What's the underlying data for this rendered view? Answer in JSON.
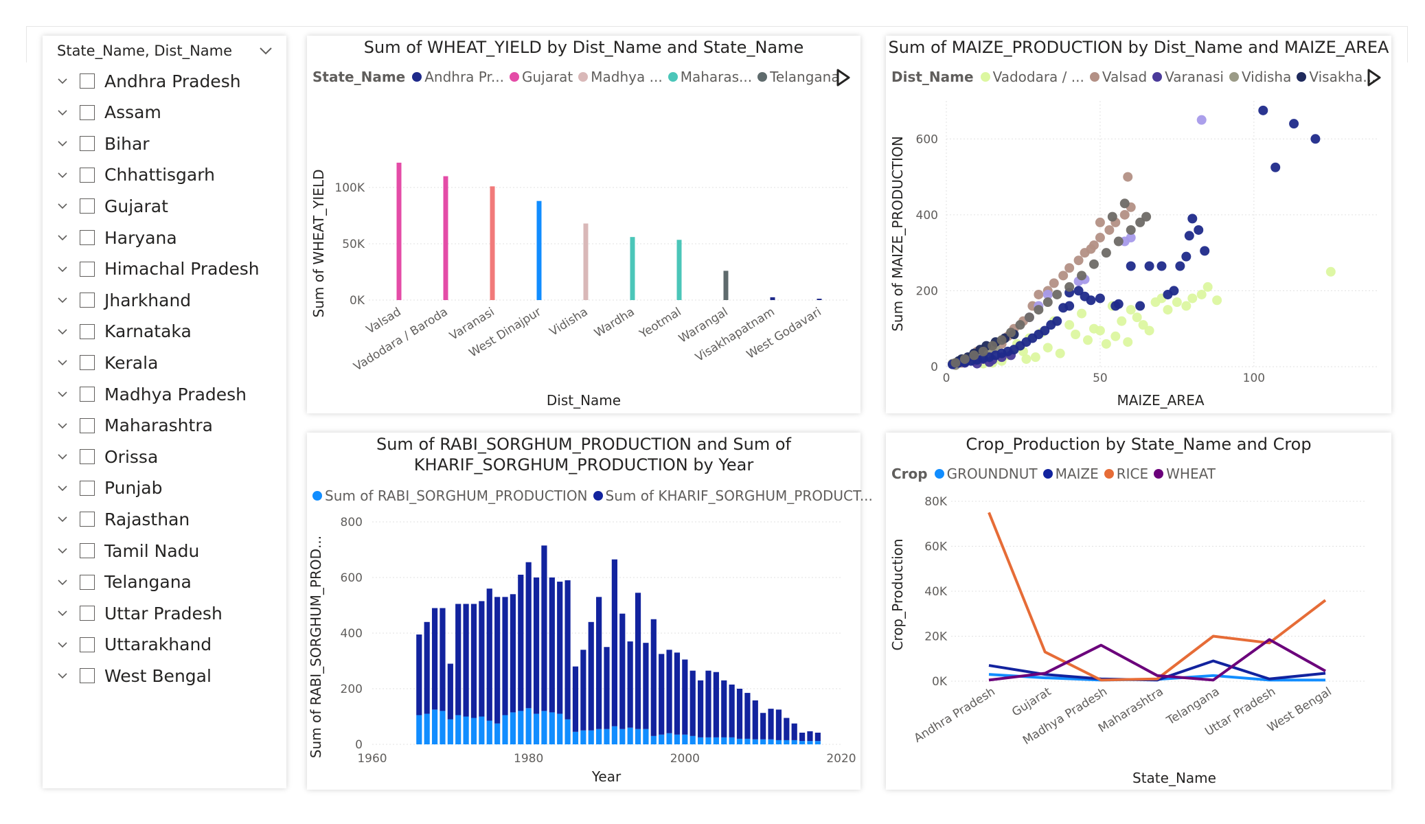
{
  "slicer": {
    "header": "State_Name, Dist_Name",
    "items": [
      "Andhra Pradesh",
      "Assam",
      "Bihar",
      "Chhattisgarh",
      "Gujarat",
      "Haryana",
      "Himachal Pradesh",
      "Jharkhand",
      "Karnataka",
      "Kerala",
      "Madhya Pradesh",
      "Maharashtra",
      "Orissa",
      "Punjab",
      "Rajasthan",
      "Tamil Nadu",
      "Telangana",
      "Uttar Pradesh",
      "Uttarakhand",
      "West Bengal"
    ]
  },
  "wheat": {
    "legend_title": "State_Name",
    "legend": [
      {
        "name": "Andhra Pr...",
        "color": "#1f2a8a"
      },
      {
        "name": "Gujarat",
        "color": "#e44ca7"
      },
      {
        "name": "Madhya ...",
        "color": "#d9b8b8"
      },
      {
        "name": "Maharas...",
        "color": "#4bc6b9"
      },
      {
        "name": "Telangana",
        "color": "#5f6b6d"
      }
    ]
  },
  "maize": {
    "legend_title": "Dist_Name",
    "legend": [
      {
        "name": "Vadodara / ...",
        "color": "#dcf7a0"
      },
      {
        "name": "Valsad",
        "color": "#b39085"
      },
      {
        "name": "Varanasi",
        "color": "#4a3a9a"
      },
      {
        "name": "Vidisha",
        "color": "#9a9a86"
      },
      {
        "name": "Visakha...",
        "color": "#1f2a5c"
      }
    ]
  },
  "sorghum": {
    "legend": [
      {
        "name": "Sum of RABI_SORGHUM_PRODUCTION",
        "color": "#118dff"
      },
      {
        "name": "Sum of KHARIF_SORGHUM_PRODUCT...",
        "color": "#12239e"
      }
    ]
  },
  "crop": {
    "legend_title": "Crop",
    "legend": [
      {
        "name": "GROUNDNUT",
        "color": "#118dff"
      },
      {
        "name": "MAIZE",
        "color": "#12239e"
      },
      {
        "name": "RICE",
        "color": "#e66c37"
      },
      {
        "name": "WHEAT",
        "color": "#6b007b"
      }
    ]
  },
  "chart_data": [
    {
      "type": "bar",
      "title": "Sum of WHEAT_YIELD by Dist_Name and State_Name",
      "xlabel": "Dist_Name",
      "ylabel": "Sum of WHEAT_YIELD",
      "ylim": [
        0,
        125000
      ],
      "yticks": [
        0,
        50000,
        100000
      ],
      "ytick_labels": [
        "0K",
        "50K",
        "100K"
      ],
      "categories": [
        "Valsad",
        "Vadodara / Baroda",
        "Varanasi",
        "West Dinajpur",
        "Vidisha",
        "Wardha",
        "Yeotmal",
        "Warangal",
        "Visakhapatnam",
        "West Godavari"
      ],
      "values": [
        122000,
        110000,
        101000,
        88000,
        68000,
        56000,
        53500,
        26000,
        2500,
        1200
      ],
      "colors": [
        "#e44ca7",
        "#e44ca7",
        "#f17a7a",
        "#118dff",
        "#d9b8b8",
        "#4bc6b9",
        "#4bc6b9",
        "#5f6b6d",
        "#1f2a8a",
        "#1f2a8a"
      ]
    },
    {
      "type": "scatter",
      "title": "Sum of MAIZE_PRODUCTION by Dist_Name and MAIZE_AREA",
      "xlabel": "MAIZE_AREA",
      "ylabel": "Sum of MAIZE_PRODUCTION",
      "xlim": [
        0,
        140
      ],
      "ylim": [
        0,
        700
      ],
      "xticks": [
        0,
        50,
        100
      ],
      "yticks": [
        0,
        200,
        400,
        600
      ],
      "series": [
        {
          "color": "#dcf7a0",
          "points": [
            [
              20,
              30
            ],
            [
              23,
              60
            ],
            [
              25,
              40
            ],
            [
              27,
              75
            ],
            [
              29,
              25
            ],
            [
              31,
              90
            ],
            [
              33,
              50
            ],
            [
              35,
              120
            ],
            [
              37,
              35
            ],
            [
              40,
              110
            ],
            [
              42,
              85
            ],
            [
              44,
              140
            ],
            [
              46,
              70
            ],
            [
              48,
              100
            ],
            [
              50,
              95
            ],
            [
              52,
              60
            ],
            [
              54,
              160
            ],
            [
              55,
              80
            ],
            [
              57,
              120
            ],
            [
              59,
              65
            ],
            [
              60,
              150
            ],
            [
              62,
              130
            ],
            [
              64,
              110
            ],
            [
              66,
              95
            ],
            [
              68,
              170
            ],
            [
              70,
              180
            ],
            [
              72,
              150
            ],
            [
              75,
              170
            ],
            [
              78,
              160
            ],
            [
              80,
              180
            ],
            [
              85,
              210
            ],
            [
              83,
              190
            ],
            [
              88,
              175
            ],
            [
              125,
              250
            ],
            [
              18,
              15
            ],
            [
              15,
              10
            ],
            [
              12,
              8
            ],
            [
              22,
              45
            ],
            [
              26,
              20
            ]
          ]
        },
        {
          "color": "#b39085",
          "points": [
            [
              5,
              10
            ],
            [
              8,
              25
            ],
            [
              10,
              40
            ],
            [
              12,
              30
            ],
            [
              15,
              45
            ],
            [
              18,
              60
            ],
            [
              20,
              80
            ],
            [
              22,
              100
            ],
            [
              25,
              120
            ],
            [
              28,
              160
            ],
            [
              30,
              190
            ],
            [
              33,
              200
            ],
            [
              35,
              220
            ],
            [
              38,
              240
            ],
            [
              40,
              260
            ],
            [
              43,
              280
            ],
            [
              45,
              300
            ],
            [
              48,
              320
            ],
            [
              50,
              340
            ],
            [
              53,
              360
            ],
            [
              55,
              380
            ],
            [
              58,
              400
            ],
            [
              60,
              420
            ],
            [
              59,
              500
            ],
            [
              50,
              380
            ],
            [
              47,
              310
            ]
          ]
        },
        {
          "color": "#4a3a9a",
          "points": [
            [
              3,
              5
            ],
            [
              6,
              10
            ],
            [
              9,
              15
            ],
            [
              12,
              20
            ],
            [
              15,
              18
            ],
            [
              18,
              25
            ],
            [
              21,
              30
            ],
            [
              10,
              8
            ],
            [
              14,
              12
            ]
          ]
        },
        {
          "color": "#9a9a86",
          "points": [
            [
              2,
              8
            ],
            [
              4,
              12
            ],
            [
              6,
              18
            ],
            [
              8,
              22
            ],
            [
              10,
              30
            ],
            [
              12,
              35
            ],
            [
              14,
              40
            ],
            [
              16,
              48
            ],
            [
              3,
              4
            ]
          ]
        },
        {
          "color": "#1f2a5c",
          "points": [
            [
              4,
              15
            ],
            [
              7,
              25
            ],
            [
              9,
              35
            ],
            [
              11,
              45
            ],
            [
              13,
              55
            ],
            [
              16,
              65
            ],
            [
              19,
              75
            ],
            [
              22,
              85
            ],
            [
              5,
              20
            ]
          ]
        },
        {
          "color": "#a79aea",
          "points": [
            [
              83,
              650
            ],
            [
              60,
              340
            ],
            [
              58,
              330
            ],
            [
              45,
              230
            ],
            [
              43,
              225
            ],
            [
              33,
              190
            ],
            [
              30,
              160
            ],
            [
              27,
              130
            ]
          ]
        },
        {
          "color": "#1f2a8a",
          "points": [
            [
              103,
              675
            ],
            [
              113,
              640
            ],
            [
              120,
              600
            ],
            [
              107,
              525
            ],
            [
              80,
              390
            ],
            [
              82,
              360
            ],
            [
              79,
              345
            ],
            [
              84,
              305
            ],
            [
              78,
              290
            ],
            [
              70,
              265
            ],
            [
              66,
              265
            ],
            [
              76,
              265
            ],
            [
              74,
              200
            ],
            [
              72,
              190
            ],
            [
              63,
              160
            ],
            [
              60,
              265
            ],
            [
              56,
              165
            ],
            [
              50,
              180
            ],
            [
              47,
              175
            ],
            [
              45,
              185
            ],
            [
              43,
              200
            ],
            [
              40,
              195
            ],
            [
              38,
              155
            ],
            [
              36,
              120
            ],
            [
              34,
              110
            ],
            [
              32,
              95
            ],
            [
              30,
              85
            ],
            [
              28,
              75
            ],
            [
              26,
              65
            ],
            [
              24,
              55
            ],
            [
              22,
              45
            ],
            [
              20,
              40
            ],
            [
              18,
              35
            ],
            [
              16,
              30
            ],
            [
              14,
              25
            ],
            [
              12,
              22
            ],
            [
              10,
              18
            ],
            [
              8,
              15
            ],
            [
              6,
              12
            ],
            [
              4,
              10
            ],
            [
              2,
              6
            ],
            [
              40,
              160
            ],
            [
              55,
              160
            ]
          ]
        },
        {
          "color": "#6e6a66",
          "points": [
            [
              3,
              10
            ],
            [
              6,
              20
            ],
            [
              9,
              30
            ],
            [
              12,
              40
            ],
            [
              15,
              55
            ],
            [
              18,
              70
            ],
            [
              21,
              90
            ],
            [
              24,
              110
            ],
            [
              27,
              130
            ],
            [
              30,
              150
            ],
            [
              33,
              170
            ],
            [
              36,
              190
            ],
            [
              40,
              210
            ],
            [
              44,
              240
            ],
            [
              48,
              270
            ],
            [
              52,
              300
            ],
            [
              56,
              330
            ],
            [
              60,
              360
            ],
            [
              63,
              380
            ],
            [
              65,
              395
            ],
            [
              58,
              430
            ],
            [
              54,
              395
            ]
          ]
        }
      ]
    },
    {
      "type": "bar",
      "stacked": true,
      "title": "Sum of RABI_SORGHUM_PRODUCTION and Sum of KHARIF_SORGHUM_PRODUCTION by Year",
      "xlabel": "Year",
      "ylabel": "Sum of RABI_SORGHUM_PROD...",
      "xlim": [
        1960,
        2020
      ],
      "ylim": [
        0,
        800
      ],
      "xticks": [
        1960,
        1980,
        2000,
        2020
      ],
      "yticks": [
        0,
        200,
        400,
        600,
        800
      ],
      "x": [
        1966,
        1967,
        1968,
        1969,
        1970,
        1971,
        1972,
        1973,
        1974,
        1975,
        1976,
        1977,
        1978,
        1979,
        1980,
        1981,
        1982,
        1983,
        1984,
        1985,
        1986,
        1987,
        1988,
        1989,
        1990,
        1991,
        1992,
        1993,
        1994,
        1995,
        1996,
        1997,
        1998,
        1999,
        2000,
        2001,
        2002,
        2003,
        2004,
        2005,
        2006,
        2007,
        2008,
        2009,
        2010,
        2011,
        2012,
        2013,
        2014,
        2015,
        2016,
        2017
      ],
      "series": [
        {
          "name": "Sum of RABI_SORGHUM_PRODUCTION",
          "values": [
            105,
            110,
            125,
            120,
            90,
            105,
            100,
            95,
            100,
            85,
            75,
            105,
            115,
            120,
            130,
            110,
            120,
            115,
            110,
            90,
            45,
            50,
            50,
            55,
            55,
            65,
            55,
            60,
            55,
            55,
            30,
            35,
            40,
            35,
            35,
            30,
            25,
            25,
            25,
            25,
            25,
            20,
            20,
            18,
            18,
            18,
            15,
            15,
            15,
            12,
            12,
            12
          ]
        },
        {
          "name": "Sum of KHARIF_SORGHUM_PRODUCTION",
          "values": [
            290,
            330,
            365,
            370,
            200,
            400,
            405,
            410,
            415,
            475,
            455,
            425,
            425,
            490,
            525,
            490,
            595,
            485,
            475,
            500,
            235,
            290,
            390,
            475,
            295,
            600,
            415,
            310,
            490,
            310,
            420,
            290,
            300,
            295,
            270,
            235,
            205,
            240,
            235,
            205,
            190,
            180,
            165,
            140,
            95,
            110,
            110,
            80,
            60,
            30,
            35,
            30
          ]
        }
      ]
    },
    {
      "type": "line",
      "title": "Crop_Production by State_Name and Crop",
      "xlabel": "State_Name",
      "ylabel": "Crop_Production",
      "ylim": [
        0,
        80000
      ],
      "yticks": [
        0,
        20000,
        40000,
        60000,
        80000
      ],
      "ytick_labels": [
        "0K",
        "20K",
        "40K",
        "60K",
        "80K"
      ],
      "categories": [
        "Andhra Pradesh",
        "Gujarat",
        "Madhya Pradesh",
        "Maharashtra",
        "Telangana",
        "Uttar Pradesh",
        "West Bengal"
      ],
      "series": [
        {
          "name": "GROUNDNUT",
          "values": [
            3000,
            1500,
            500,
            800,
            2500,
            500,
            500
          ]
        },
        {
          "name": "MAIZE",
          "values": [
            7000,
            3000,
            1000,
            500,
            9000,
            1000,
            3500
          ]
        },
        {
          "name": "RICE",
          "values": [
            75000,
            13000,
            500,
            1000,
            20000,
            17000,
            36000
          ]
        },
        {
          "name": "WHEAT",
          "values": [
            500,
            3500,
            16000,
            2500,
            500,
            18500,
            4500
          ]
        }
      ]
    }
  ]
}
